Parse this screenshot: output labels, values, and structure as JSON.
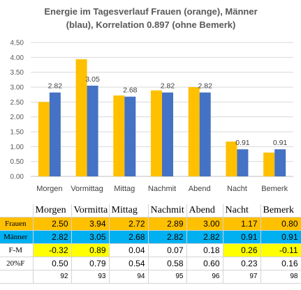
{
  "chart_data": {
    "type": "bar",
    "title": "Energie im Tagesverlauf Frauen (orange), Männer (blau), Korrelation 0.897 (ohne Bemerk)",
    "title_lines": [
      "Energie im Tagesverlauf Frauen (orange), Männer",
      "(blau), Korrelation 0.897 (ohne Bemerk)"
    ],
    "categories": [
      "Morgen",
      "Vormittag",
      "Mittag",
      "Nachmit",
      "Abend",
      "Nacht",
      "Bemerk"
    ],
    "series": [
      {
        "values": [
          2.5,
          3.94,
          2.72,
          2.89,
          3.0,
          1.17,
          0.8
        ],
        "color": "#FFC000"
      },
      {
        "values": [
          2.82,
          3.05,
          2.68,
          2.82,
          2.82,
          0.91,
          0.91
        ],
        "color": "#4472C4"
      }
    ],
    "data_labels": [
      "2.82",
      "3.05",
      "2.68",
      "2.82",
      "2.82",
      "0.91",
      "0.91"
    ],
    "ylim": [
      0,
      4.5
    ],
    "yticks": [
      "0.00",
      "0.50",
      "1.00",
      "1.50",
      "2.00",
      "2.50",
      "3.00",
      "3.50",
      "4.00",
      "4.50"
    ],
    "grid": true,
    "legend": "none"
  },
  "table": {
    "columns": [
      "Morgen",
      "Vormitta",
      "Mittag",
      "Nachmit",
      "Abend",
      "Nacht",
      "Bemerk"
    ],
    "rows": [
      {
        "label": "Frauen",
        "fill": "#FFC000",
        "values": [
          "2.50",
          "3.94",
          "2.72",
          "2.89",
          "3.00",
          "1.17",
          "0.80"
        ]
      },
      {
        "label": "Männer",
        "fill": "#00B0F0",
        "values": [
          "2.82",
          "3.05",
          "2.68",
          "2.82",
          "2.82",
          "0.91",
          "0.91"
        ]
      },
      {
        "label": "F-M",
        "fill": "#ffffff",
        "values": [
          "-0.32",
          "0.89",
          "0.04",
          "0.07",
          "0.18",
          "0.26",
          "-0.11"
        ],
        "highlight": [
          true,
          true,
          false,
          false,
          false,
          true,
          true
        ],
        "highlight_color": "#FFFF00"
      },
      {
        "label": "20%F",
        "fill": "#ffffff",
        "values": [
          "0.50",
          "0.79",
          "0.54",
          "0.58",
          "0.60",
          "0.23",
          "0.16"
        ]
      },
      {
        "label": "",
        "fill": "#ffffff",
        "values": [
          "92",
          "93",
          "94",
          "95",
          "96",
          "97",
          "98"
        ]
      }
    ]
  }
}
